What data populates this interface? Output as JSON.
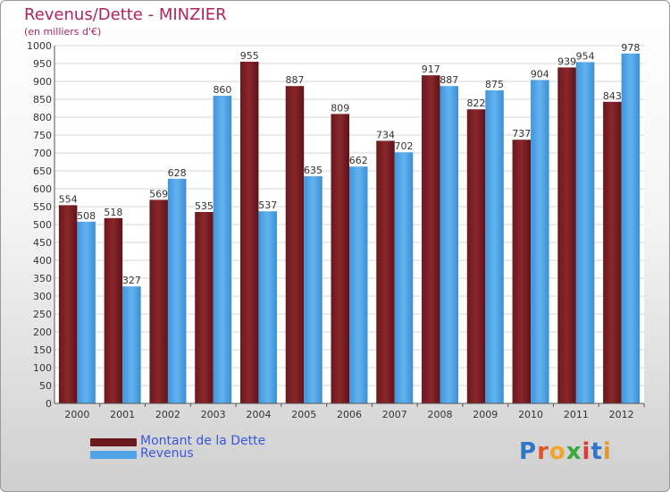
{
  "title": "Revenus/Dette - MINZIER",
  "subtitle": "(en milliers d'€)",
  "logo": {
    "text": "Proxiti",
    "letter_colors": [
      "#2f76c9",
      "#e0552b",
      "#f0a52c",
      "#3aa83a",
      "#d93a3a",
      "#2f76c9",
      "#e09a2a"
    ]
  },
  "chart_data": {
    "type": "bar",
    "title": "Revenus/Dette - MINZIER",
    "subtitle": "(en milliers d'€)",
    "categories": [
      "2000",
      "2001",
      "2002",
      "2003",
      "2004",
      "2005",
      "2006",
      "2007",
      "2008",
      "2009",
      "2010",
      "2011",
      "2012"
    ],
    "series": [
      {
        "name": "Montant de la Dette",
        "color": "#7b1f24",
        "values": [
          554,
          518,
          569,
          535,
          955,
          887,
          809,
          734,
          917,
          822,
          737,
          939,
          843
        ]
      },
      {
        "name": "Revenus",
        "color": "#4fa3e6",
        "values": [
          508,
          327,
          628,
          860,
          537,
          635,
          662,
          702,
          887,
          875,
          904,
          954,
          978
        ]
      }
    ],
    "ylim": [
      0,
      1000
    ],
    "y_ticks": [
      "0",
      "50",
      "100",
      "150",
      "200",
      "250",
      "300",
      "350",
      "400",
      "450",
      "500",
      "550",
      "600",
      "650",
      "700",
      "750",
      "800",
      "850",
      "900",
      "950",
      "1000"
    ],
    "grid": true,
    "legend_position": "bottom-left"
  }
}
